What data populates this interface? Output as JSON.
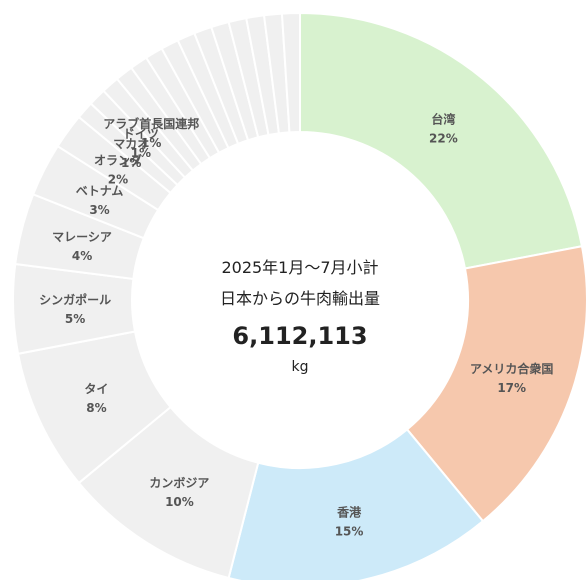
{
  "chart_data": {
    "type": "pie",
    "subtype": "donut",
    "center": {
      "line1": "2025年1月～7月小計",
      "line2": "日本からの牛肉輸出量",
      "total": "6,112,113",
      "unit": "kg"
    },
    "slices": [
      {
        "name": "台湾",
        "value": 22,
        "pct_label": "22%",
        "color": "#d8f2cf"
      },
      {
        "name": "アメリカ合衆国",
        "value": 17,
        "pct_label": "17%",
        "color": "#f6c8ad"
      },
      {
        "name": "香港",
        "value": 15,
        "pct_label": "15%",
        "color": "#cdeaf9"
      },
      {
        "name": "カンボジア",
        "value": 10,
        "pct_label": "10%",
        "color": "#f0f0f0"
      },
      {
        "name": "タイ",
        "value": 8,
        "pct_label": "8%",
        "color": "#f0f0f0"
      },
      {
        "name": "シンガポール",
        "value": 5,
        "pct_label": "5%",
        "color": "#f0f0f0"
      },
      {
        "name": "マレーシア",
        "value": 4,
        "pct_label": "4%",
        "color": "#f0f0f0"
      },
      {
        "name": "ベトナム",
        "value": 3,
        "pct_label": "3%",
        "color": "#f0f0f0"
      },
      {
        "name": "オランダ",
        "value": 2,
        "pct_label": "2%",
        "color": "#f0f0f0"
      },
      {
        "name": "マカオ",
        "value": 1,
        "pct_label": "1%",
        "color": "#f0f0f0"
      },
      {
        "name": "ドイツ",
        "value": 1,
        "pct_label": "1%",
        "color": "#f0f0f0"
      },
      {
        "name": "アラブ首長国連邦",
        "value": 1,
        "pct_label": "1%",
        "color": "#f0f0f0"
      },
      {
        "name": "",
        "value": 1,
        "pct_label": "",
        "color": "#f0f0f0"
      },
      {
        "name": "",
        "value": 1,
        "pct_label": "",
        "color": "#f0f0f0"
      },
      {
        "name": "",
        "value": 1,
        "pct_label": "",
        "color": "#f0f0f0"
      },
      {
        "name": "",
        "value": 1,
        "pct_label": "",
        "color": "#f0f0f0"
      },
      {
        "name": "",
        "value": 1,
        "pct_label": "",
        "color": "#f0f0f0"
      },
      {
        "name": "",
        "value": 1,
        "pct_label": "",
        "color": "#f0f0f0"
      },
      {
        "name": "",
        "value": 1,
        "pct_label": "",
        "color": "#f0f0f0"
      },
      {
        "name": "",
        "value": 1,
        "pct_label": "",
        "color": "#f0f0f0"
      },
      {
        "name": "",
        "value": 1,
        "pct_label": "",
        "color": "#f0f0f0"
      },
      {
        "name": "",
        "value": 1,
        "pct_label": "",
        "color": "#f0f0f0"
      },
      {
        "name": "",
        "value": 1,
        "pct_label": "",
        "color": "#f0f0f0"
      }
    ]
  }
}
